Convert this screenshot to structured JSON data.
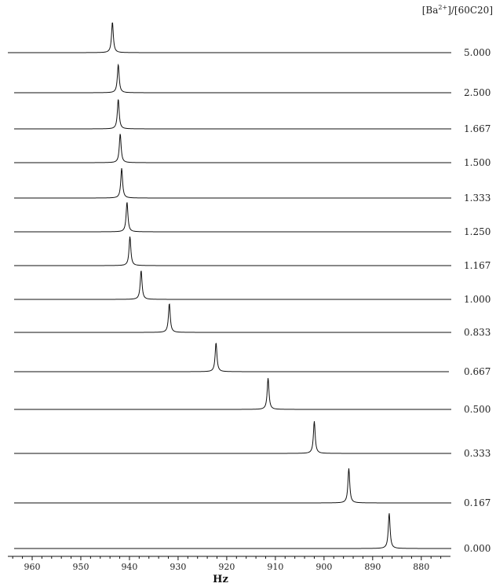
{
  "chart_data": {
    "type": "line",
    "xlabel": "Hz",
    "legend_title": {
      "prefix": "[Ba",
      "superscript": "2+",
      "suffix": "]/[60C20]"
    },
    "xlim": [
      965,
      874
    ],
    "x_axis_reversed": true,
    "x_ticks": [
      960,
      950,
      940,
      930,
      920,
      910,
      900,
      890,
      880
    ],
    "x_tick_labels": [
      "960",
      "950",
      "940",
      "930",
      "920",
      "910",
      "900",
      "890",
      "880"
    ],
    "grid": false,
    "peak_shape": "lorentzian",
    "series": [
      {
        "name": "5.000",
        "peak_hz": 943.5
      },
      {
        "name": "2.500",
        "peak_hz": 942.3
      },
      {
        "name": "1.667",
        "peak_hz": 942.3
      },
      {
        "name": "1.500",
        "peak_hz": 941.9
      },
      {
        "name": "1.333",
        "peak_hz": 941.6
      },
      {
        "name": "1.250",
        "peak_hz": 940.5
      },
      {
        "name": "1.167",
        "peak_hz": 939.9
      },
      {
        "name": "1.000",
        "peak_hz": 937.6
      },
      {
        "name": "0.833",
        "peak_hz": 931.8
      },
      {
        "name": "0.667",
        "peak_hz": 922.2
      },
      {
        "name": "0.500",
        "peak_hz": 911.5
      },
      {
        "name": "0.333",
        "peak_hz": 902.0
      },
      {
        "name": "0.167",
        "peak_hz": 894.9
      },
      {
        "name": "0.000",
        "peak_hz": 886.6
      }
    ]
  }
}
